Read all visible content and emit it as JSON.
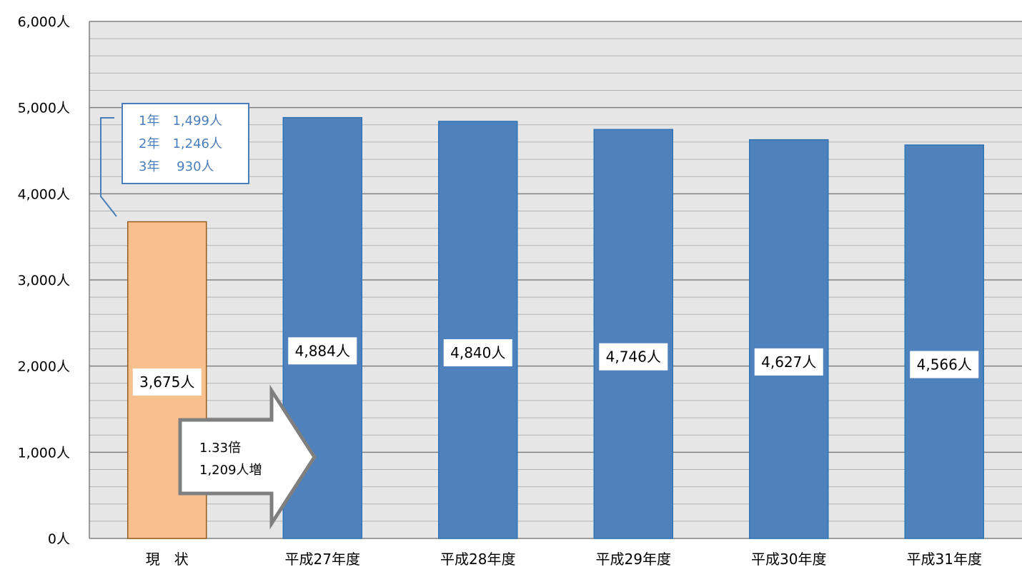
{
  "chart_data": {
    "type": "bar",
    "title": "",
    "xlabel": "",
    "ylabel": "",
    "categories": [
      "現　状",
      "平成27年度",
      "平成28年度",
      "平成29年度",
      "平成30年度",
      "平成31年度"
    ],
    "values": [
      3675,
      4884,
      4840,
      4746,
      4627,
      4566
    ],
    "value_labels": [
      "3,675人",
      "4,884人",
      "4,840人",
      "4,746人",
      "4,627人",
      "4,566人"
    ],
    "ylim": [
      0,
      6000
    ],
    "yticks": [
      0,
      1000,
      2000,
      3000,
      4000,
      5000,
      6000
    ],
    "ytick_labels": [
      "0人",
      "1,000人",
      "2,000人",
      "3,000人",
      "4,000人",
      "5,000人",
      "6,000人"
    ],
    "minor_gridline_step": 200,
    "grid": true,
    "colors": {
      "current": "#f9c08f",
      "current_border": "#9a5a1c",
      "projected": "#4f81bd",
      "projected_border": "#2e75b6",
      "plot_background": "#e6e6e6",
      "major_grid": "#808080",
      "minor_grid": "#b3b3b3",
      "callout": "#4a7ebb",
      "arrow_border": "#7f7f7f"
    },
    "callout": {
      "lines": [
        "1年　1,499人",
        "2年　1,246人",
        "3年　 930人"
      ]
    },
    "arrow": {
      "lines": [
        "1.33倍",
        "1,209人増"
      ]
    }
  }
}
